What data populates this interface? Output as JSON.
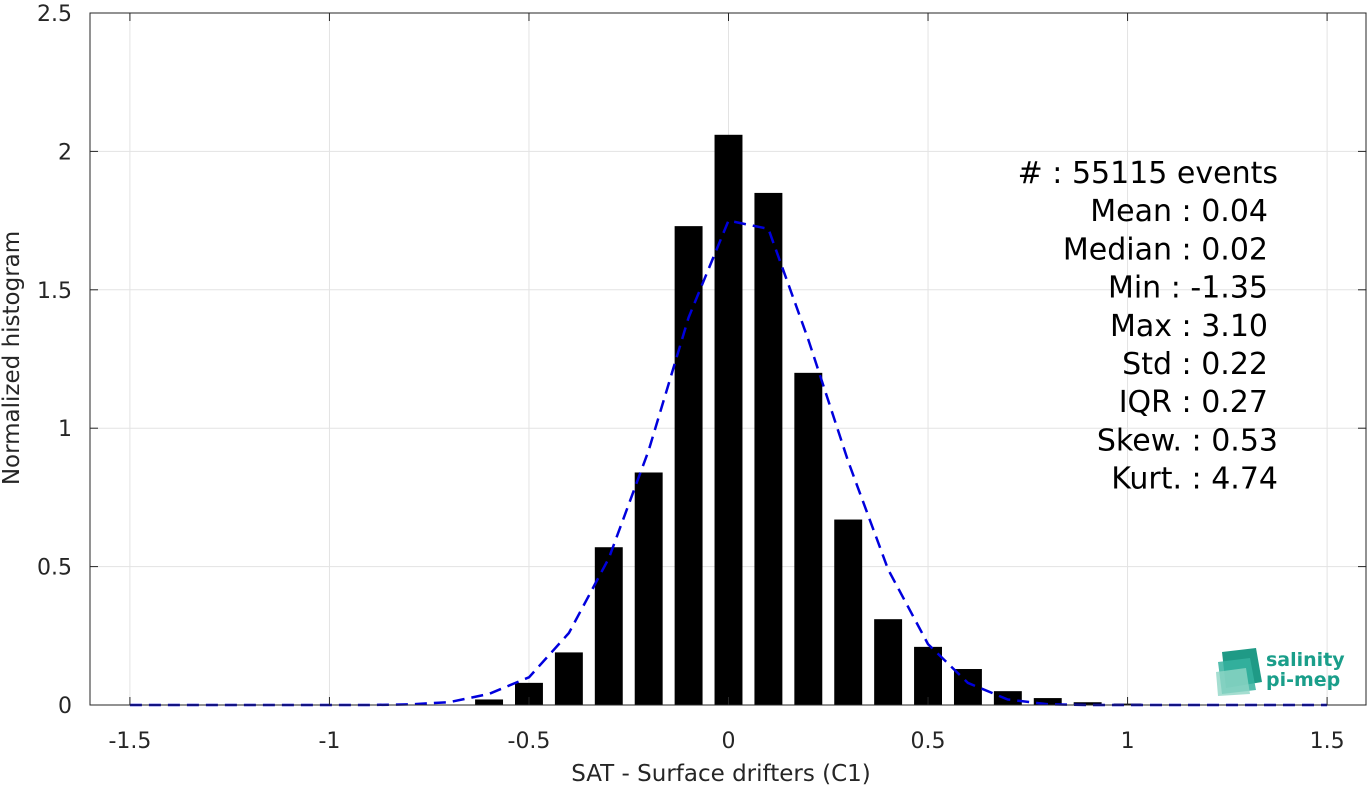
{
  "chart_data": {
    "type": "bar",
    "xlabel": "SAT - Surface drifters (C1)",
    "ylabel": "Normalized histogram",
    "xlim": [
      -1.6,
      1.6
    ],
    "ylim": [
      0,
      2.5
    ],
    "grid": true,
    "x_ticks": [
      -1.5,
      -1,
      -0.5,
      0,
      0.5,
      1,
      1.5
    ],
    "x_tick_labels": [
      "-1.5",
      "-1",
      "-0.5",
      "0",
      "0.5",
      "1",
      "1.5"
    ],
    "y_ticks": [
      0,
      0.5,
      1,
      1.5,
      2,
      2.5
    ],
    "y_tick_labels": [
      "0",
      "0.5",
      "1",
      "1.5",
      "2",
      "2.5"
    ],
    "bar_color": "#000000",
    "bins": {
      "centers": [
        -0.6,
        -0.5,
        -0.4,
        -0.3,
        -0.2,
        -0.1,
        0.0,
        0.1,
        0.2,
        0.3,
        0.4,
        0.5,
        0.6,
        0.7,
        0.8,
        0.9,
        1.0
      ],
      "values": [
        0.02,
        0.08,
        0.19,
        0.57,
        0.84,
        1.73,
        2.06,
        1.85,
        1.2,
        0.67,
        0.31,
        0.21,
        0.13,
        0.05,
        0.025,
        0.01,
        0.005
      ],
      "width": 0.07
    },
    "fit_curve": {
      "style": "dashed",
      "color": "#0000dd",
      "x": [
        -1.5,
        -1.4,
        -1.3,
        -1.2,
        -1.1,
        -1.0,
        -0.9,
        -0.8,
        -0.7,
        -0.6,
        -0.5,
        -0.4,
        -0.3,
        -0.2,
        -0.1,
        0.0,
        0.1,
        0.2,
        0.3,
        0.4,
        0.5,
        0.6,
        0.7,
        0.8,
        0.9,
        1.0,
        1.1,
        1.2,
        1.3,
        1.4,
        1.5
      ],
      "y": [
        0,
        0,
        0,
        0,
        0,
        0,
        0,
        0.002,
        0.01,
        0.04,
        0.1,
        0.26,
        0.53,
        0.92,
        1.4,
        1.75,
        1.72,
        1.32,
        0.88,
        0.49,
        0.22,
        0.08,
        0.02,
        0.003,
        0,
        0,
        0,
        0,
        0,
        0,
        0
      ]
    },
    "annotations": [
      "#  : 55115 events",
      "Mean : 0.04",
      "Median : 0.02",
      "Min : -1.35",
      "Max : 3.10",
      "Std : 0.22",
      "IQR : 0.27",
      "Skew. : 0.53",
      "Kurt. : 4.74"
    ]
  },
  "logo": {
    "line1": "salinity",
    "line2": "pi-mep",
    "color": "#1a9e8a"
  }
}
